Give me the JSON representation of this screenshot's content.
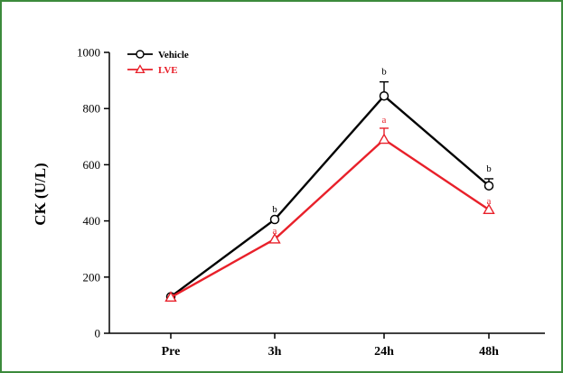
{
  "chart_data": {
    "type": "line",
    "ylabel": "CK (U/L)",
    "xlabel": "",
    "categories": [
      "Pre",
      "3h",
      "24h",
      "48h"
    ],
    "ylim": [
      0,
      1000
    ],
    "yticks": [
      "0",
      "200",
      "400",
      "600",
      "800",
      "1000"
    ],
    "legend_position": "top-left",
    "grid": false,
    "series": [
      {
        "name": "Vehicle",
        "color": "#000000",
        "marker": "circle",
        "values": [
          130,
          405,
          845,
          525
        ],
        "errors": [
          0,
          0,
          50,
          25
        ],
        "annotations": [
          "",
          "b",
          "b",
          "b"
        ]
      },
      {
        "name": "LVE",
        "color": "#e8202a",
        "marker": "triangle",
        "values": [
          128,
          335,
          690,
          440
        ],
        "errors": [
          0,
          0,
          40,
          0
        ],
        "annotations": [
          "",
          "a",
          "a",
          "a"
        ]
      }
    ]
  }
}
